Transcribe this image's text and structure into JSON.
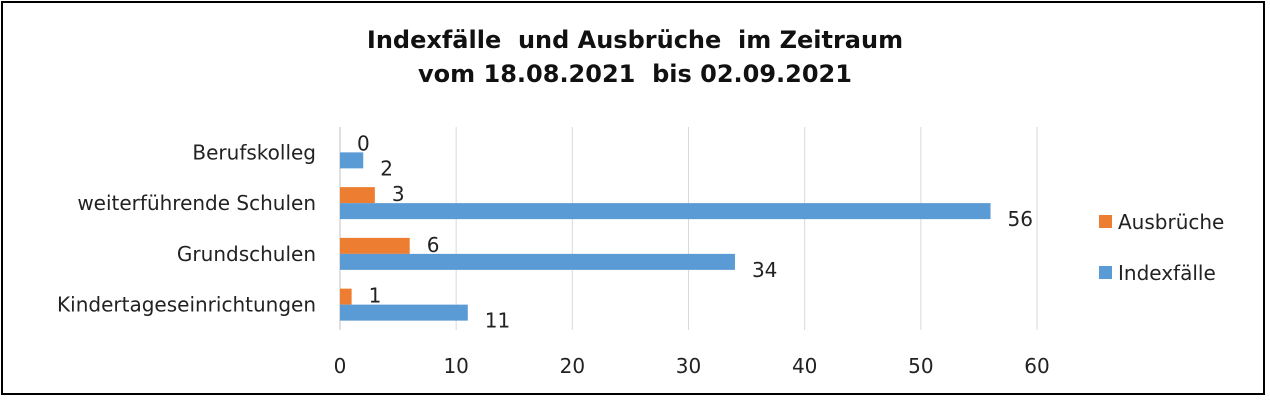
{
  "chart_data": {
    "type": "bar",
    "orientation": "horizontal",
    "title_line1": "Indexfälle  und Ausbrüche  im Zeitraum",
    "title_line2": "vom 18.08.2021  bis 02.09.2021",
    "categories": [
      "Kindertageseinrichtungen",
      "Grundschulen",
      "weiterführende Schulen",
      "Berufskolleg"
    ],
    "series": [
      {
        "name": "Indexfälle",
        "color": "#5B9BD5",
        "values": [
          11,
          34,
          56,
          2
        ]
      },
      {
        "name": "Ausbrüche",
        "color": "#ED7D31",
        "values": [
          1,
          6,
          3,
          0
        ]
      }
    ],
    "xlim": [
      0,
      60
    ],
    "xticks": [
      0,
      10,
      20,
      30,
      40,
      50,
      60
    ],
    "grid": true,
    "legend_position": "right",
    "legend_order": [
      "Ausbrüche",
      "Indexfälle"
    ]
  }
}
